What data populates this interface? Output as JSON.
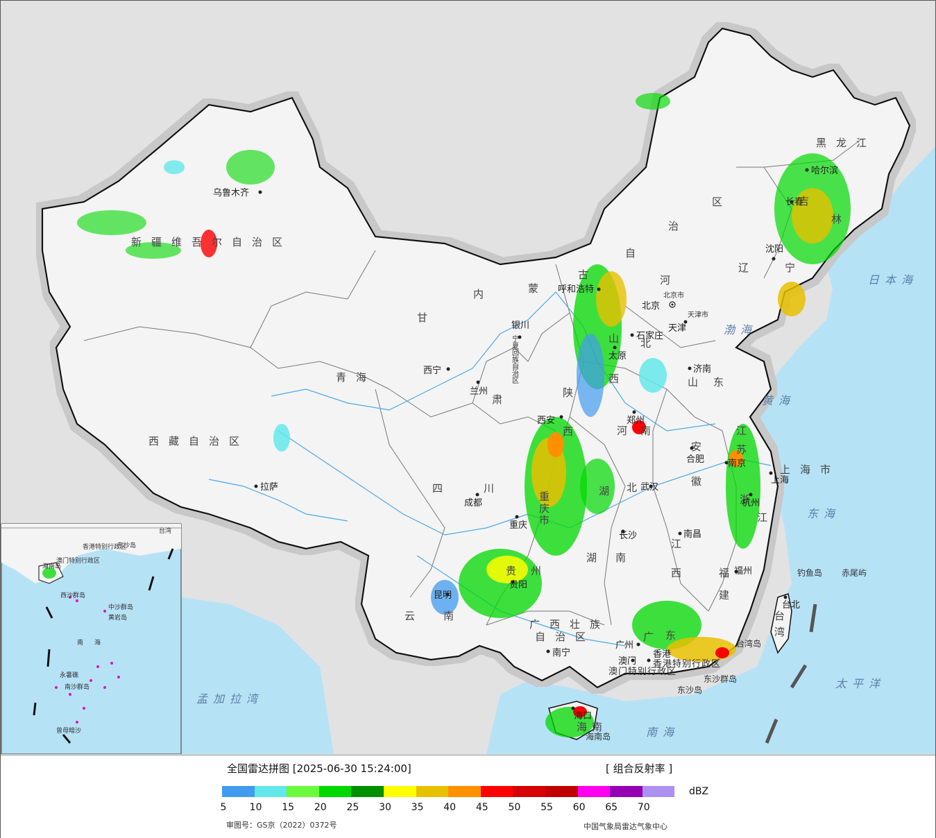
{
  "legend": {
    "title": "全国雷达拼图 [2025-06-30 15:24:00]",
    "product": "[ 组合反射率 ]",
    "unit": "dBZ",
    "colors": [
      "#419bef",
      "#64e7eb",
      "#6dfa3d",
      "#00d800",
      "#019000",
      "#ffff00",
      "#e7c000",
      "#ff9000",
      "#ff0000",
      "#d60000",
      "#c00000",
      "#ff00f0",
      "#9600b4",
      "#ad90f0"
    ],
    "ticks": [
      "5",
      "10",
      "15",
      "20",
      "25",
      "30",
      "35",
      "40",
      "45",
      "50",
      "55",
      "60",
      "65",
      "70"
    ],
    "approval": "审图号：GS京（2022）0372号",
    "center": "中国气象局雷达气象中心"
  },
  "provinces": {
    "xinjiang": "新疆维吾尔自治区",
    "xizang": "西藏自治区",
    "qinghai": "青海",
    "gansu": "甘",
    "gansu2": "肃",
    "neimenggu_1": "内",
    "neimenggu_2": "蒙",
    "neimenggu_3": "古",
    "neimenggu_4": "自",
    "neimenggu_5": "治",
    "neimenggu_6": "区",
    "heilongjiang": "黑龙江",
    "jilin_1": "吉",
    "jilin_2": "林",
    "liaoning_1": "辽",
    "liaoning_2": "宁",
    "hebei_1": "河",
    "hebei_2": "北",
    "shanxi_1": "山",
    "shanxi_2": "西",
    "shandong_1": "山",
    "shandong_2": "东",
    "shaanxi_1": "陕",
    "shaanxi_2": "西",
    "ningxia": "宁夏回族自治区",
    "henan_1": "河",
    "henan_2": "南",
    "jiangsu_1": "江",
    "jiangsu_2": "苏",
    "anhui_1": "安",
    "anhui_2": "徽",
    "shanghai": "上海市",
    "sichuan_1": "四",
    "sichuan_2": "川",
    "chongqing_1": "重",
    "chongqing_2": "庆",
    "chongqing_3": "市",
    "hubei_1": "湖",
    "hubei_2": "北",
    "zhejiang_1": "浙",
    "zhejiang_2": "江",
    "hunan_1": "湖",
    "hunan_2": "南",
    "jiangxi_1": "江",
    "jiangxi_2": "西",
    "guizhou_1": "贵",
    "guizhou_2": "州",
    "fujian_1": "福",
    "fujian_2": "建",
    "yunnan_1": "云",
    "yunnan_2": "南",
    "guangxi_1": "广西壮族",
    "guangxi_2": "自治区",
    "guangdong_1": "广",
    "guangdong_2": "东",
    "taiwan_1": "台",
    "taiwan_2": "湾",
    "hainan_1": "海",
    "hainan_2": "南",
    "hongkong": "香港特别行政区",
    "macau": "澳门特别行政区",
    "beijing": "北京市",
    "tianjin": "天津市",
    "tianjin2": "天津"
  },
  "cities": {
    "urumqi": "乌鲁木齐",
    "lhasa": "拉萨",
    "xining": "西宁",
    "lanzhou": "兰州",
    "yinchuan": "银川",
    "huhehaote": "呼和浩特",
    "beijing": "北京",
    "taiyuan": "太原",
    "shijiazhuang": "石家庄",
    "jinan": "济南",
    "zhengzhou": "郑州",
    "xian": "西安",
    "chengdu": "成都",
    "chongqing": "重庆",
    "wuhan": "武汉",
    "hefei": "合肥",
    "nanjing": "南京",
    "shanghai": "上海",
    "hangzhou": "杭州",
    "changsha": "长沙",
    "nanchang": "南昌",
    "fuzhou": "福州",
    "guiyang": "贵阳",
    "kunming": "昆明",
    "nanning": "南宁",
    "guangzhou": "广州",
    "hongkong": "香港",
    "macau": "澳门",
    "haikou": "海口",
    "taibei": "台北",
    "harbin": "哈尔滨",
    "changchun": "长春",
    "shenyang": "沈阳"
  },
  "seas": {
    "bohai": "渤海",
    "huanghai": "黄海",
    "donghai": "东海",
    "nanhai": "南海",
    "ribenhai": "日本海",
    "taipingyang": "太平洋",
    "mengjialawan": "孟加拉湾"
  },
  "islands": {
    "diaoyu": "钓鱼岛",
    "chiwei": "赤尾屿",
    "dongsha": "东沙群岛",
    "dongsha2": "东沙岛",
    "hainan": "海南岛",
    "taiwan": "台湾岛"
  },
  "inset": {
    "nanhai": "南海",
    "xisha": "西沙群岛",
    "zhongsha": "中沙群岛",
    "huangyan": "黄岩岛",
    "nansha": "南沙群岛",
    "zengmu": "曾母暗沙",
    "yongshu": "永暑礁",
    "dongsha": "东沙岛",
    "hainan": "海南岛",
    "hk": "香港特别行政区",
    "macau": "澳门特别行政区",
    "taiwan": "台湾"
  }
}
